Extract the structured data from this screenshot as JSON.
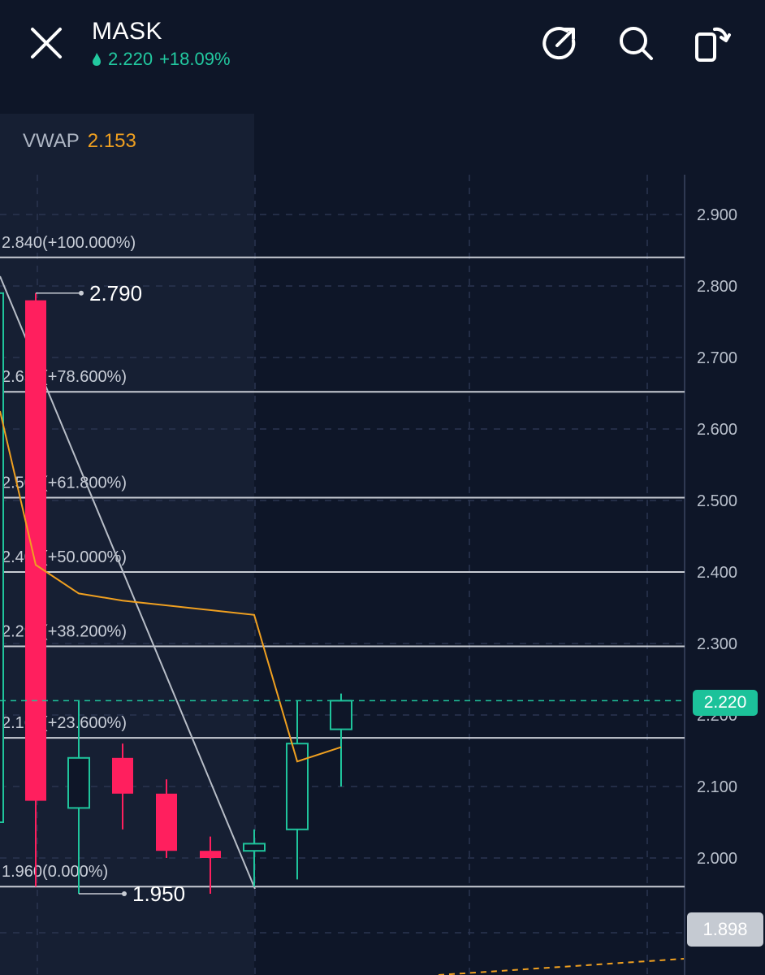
{
  "header": {
    "symbol": "MASK",
    "price": "2.220",
    "change": "+18.09%",
    "icons": [
      "close-icon",
      "share-icon",
      "search-icon",
      "rotate-screen-icon"
    ]
  },
  "indicator": {
    "label": "VWAP",
    "value": "2.153"
  },
  "colors": {
    "up": "#1fc49c",
    "down": "#ff1f5e",
    "vwap": "#f0a020",
    "fib": "#c8ccd4",
    "background": "#0e1628"
  },
  "chart_data": {
    "type": "candlestick",
    "ylim": [
      1.898,
      2.95
    ],
    "y_ticks": [
      "2.900",
      "2.800",
      "2.700",
      "2.600",
      "2.500",
      "2.400",
      "2.300",
      "2.200",
      "2.100",
      "2.000"
    ],
    "candles": [
      {
        "open": 2.05,
        "high": 2.79,
        "low": 2.05,
        "close": 2.79,
        "dir": "up"
      },
      {
        "open": 2.78,
        "high": 2.79,
        "low": 1.96,
        "close": 2.08,
        "dir": "down"
      },
      {
        "open": 2.07,
        "high": 2.22,
        "low": 1.95,
        "close": 2.14,
        "dir": "up"
      },
      {
        "open": 2.14,
        "high": 2.16,
        "low": 2.04,
        "close": 2.09,
        "dir": "down"
      },
      {
        "open": 2.09,
        "high": 2.11,
        "low": 2.0,
        "close": 2.01,
        "dir": "down"
      },
      {
        "open": 2.01,
        "high": 2.03,
        "low": 1.95,
        "close": 2.0,
        "dir": "down"
      },
      {
        "open": 2.01,
        "high": 2.04,
        "low": 1.96,
        "close": 2.02,
        "dir": "up"
      },
      {
        "open": 2.04,
        "high": 2.22,
        "low": 1.97,
        "close": 2.16,
        "dir": "up"
      },
      {
        "open": 2.18,
        "high": 2.23,
        "low": 2.1,
        "close": 2.22,
        "dir": "up"
      }
    ],
    "vwap_line": [
      2.625,
      2.41,
      2.37,
      2.36,
      2.34,
      2.135,
      2.155
    ],
    "fib_levels": [
      {
        "price": 2.84,
        "label": "2.840(+100.000%)"
      },
      {
        "price": 2.652,
        "label": "2.652(+78.600%)"
      },
      {
        "price": 2.504,
        "label": "2.504(+61.800%)"
      },
      {
        "price": 2.4,
        "label": "2.400(+50.000%)"
      },
      {
        "price": 2.296,
        "label": "2.296(+38.200%)"
      },
      {
        "price": 2.168,
        "label": "2.168(+23.600%)"
      },
      {
        "price": 1.96,
        "label": "1.960(0.000%)"
      }
    ],
    "high_label": "2.790",
    "low_label": "1.950",
    "current_price": "2.220",
    "lower_badge": "1.898"
  }
}
